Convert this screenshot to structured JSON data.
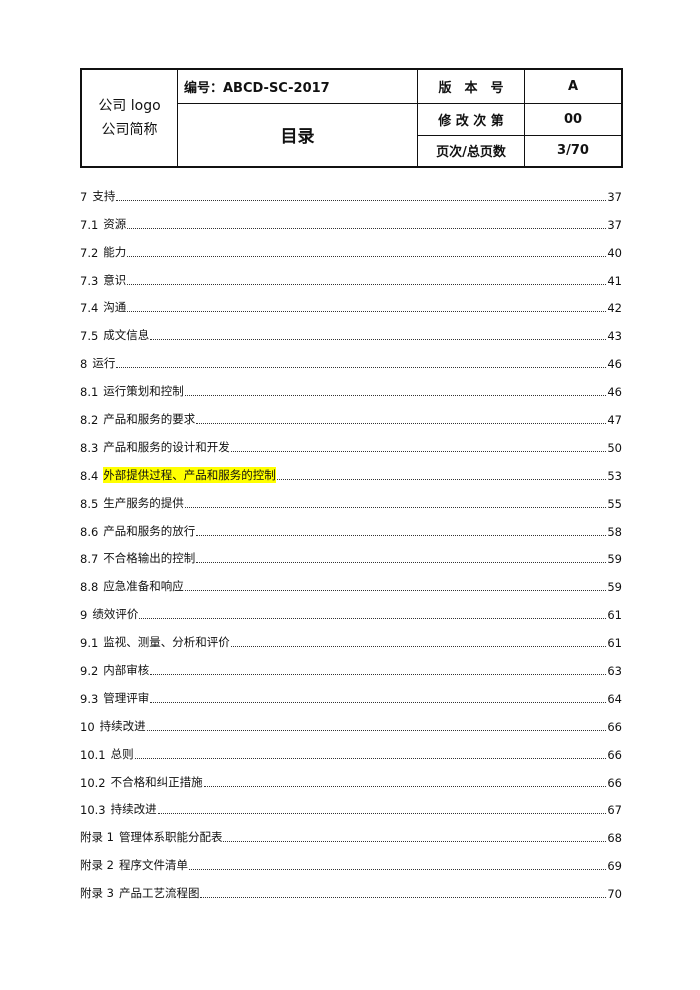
{
  "header": {
    "company_logo": "公司 logo",
    "company_name": "公司简称",
    "code_label": "编号：ABCD-SC-2017",
    "doc_title": "目录",
    "version_label": "版　本　号",
    "version_value": "A",
    "revision_label": "修 改 次 第",
    "revision_value": "00",
    "page_label": "页次/总页数",
    "page_value": "3/70"
  },
  "highlight_color": "#ffff00",
  "toc": [
    {
      "num": "7",
      "title": "支持",
      "page": "37"
    },
    {
      "num": "7.1",
      "title": "资源",
      "page": "37"
    },
    {
      "num": "7.2",
      "title": "能力",
      "page": "40"
    },
    {
      "num": "7.3",
      "title": "意识",
      "page": "41"
    },
    {
      "num": "7.4",
      "title": "沟通",
      "page": "42"
    },
    {
      "num": "7.5",
      "title": "成文信息",
      "page": "43"
    },
    {
      "num": "8",
      "title": "运行",
      "page": "46"
    },
    {
      "num": "8.1",
      "title": "运行策划和控制",
      "page": "46"
    },
    {
      "num": "8.2",
      "title": "产品和服务的要求",
      "page": "47"
    },
    {
      "num": "8.3",
      "title": "产品和服务的设计和开发",
      "page": "50"
    },
    {
      "num": "8.4",
      "title": "外部提供过程、产品和服务的控制",
      "page": "53",
      "highlighted": true
    },
    {
      "num": "8.5",
      "title": "生产服务的提供",
      "page": "55"
    },
    {
      "num": "8.6",
      "title": "产品和服务的放行",
      "page": "58"
    },
    {
      "num": "8.7",
      "title": "不合格输出的控制",
      "page": "59"
    },
    {
      "num": "8.8",
      "title": "应急准备和响应",
      "page": "59"
    },
    {
      "num": "9",
      "title": "绩效评价",
      "page": "61"
    },
    {
      "num": "9.1",
      "title": "监视、测量、分析和评价",
      "page": "61"
    },
    {
      "num": "9.2",
      "title": "内部审核",
      "page": "63"
    },
    {
      "num": "9.3",
      "title": "管理评审",
      "page": "64"
    },
    {
      "num": "10",
      "title": "持续改进",
      "page": "66"
    },
    {
      "num": "10.1",
      "title": "总则",
      "page": "66"
    },
    {
      "num": "10.2",
      "title": "不合格和纠正措施",
      "page": "66"
    },
    {
      "num": "10.3",
      "title": "持续改进",
      "page": "67"
    },
    {
      "num": "附录 1",
      "title": "管理体系职能分配表",
      "page": "68"
    },
    {
      "num": "附录 2",
      "title": "程序文件清单",
      "page": "69"
    },
    {
      "num": "附录 3",
      "title": "产品工艺流程图",
      "page": "70"
    }
  ]
}
